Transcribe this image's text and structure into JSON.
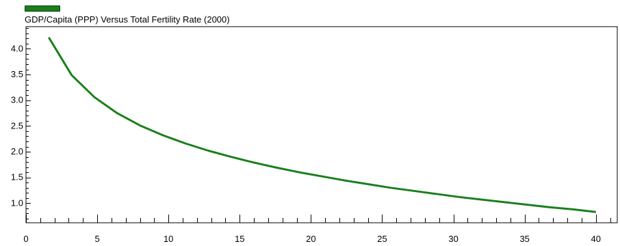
{
  "colors": {
    "series": "#1b7f1b",
    "axis": "#000000",
    "background": "#ffffff"
  },
  "chart_data": {
    "type": "line",
    "title": "GDP/Capita (PPP) Versus Total Fertility Rate (2000)",
    "xlabel": "",
    "ylabel": "",
    "xlim": [
      0,
      41.5
    ],
    "ylim": [
      0.62,
      4.43
    ],
    "grid": false,
    "legend_position": "top-left",
    "x_ticks": [
      0,
      5,
      10,
      15,
      20,
      25,
      30,
      35,
      40
    ],
    "x_tick_labels": [
      "0",
      "5",
      "10",
      "15",
      "20",
      "25",
      "30",
      "35",
      "40"
    ],
    "y_ticks": [
      1.0,
      1.5,
      2.0,
      2.5,
      3.0,
      3.5,
      4.0
    ],
    "y_tick_labels": [
      "1.0",
      "1.5",
      "2.0",
      "2.5",
      "3.0",
      "3.5",
      "4.0"
    ],
    "series": [
      {
        "x": [
          1.6,
          3.2,
          4.8,
          6.4,
          8.0,
          9.6,
          11.2,
          12.8,
          14.4,
          16.0,
          17.6,
          19.2,
          20.8,
          22.4,
          24.0,
          25.6,
          27.2,
          28.8,
          30.4,
          32.0,
          33.6,
          35.2,
          36.8,
          38.4,
          40.0
        ],
        "y": [
          4.22,
          3.49,
          3.06,
          2.75,
          2.51,
          2.32,
          2.16,
          2.02,
          1.9,
          1.79,
          1.69,
          1.6,
          1.52,
          1.44,
          1.37,
          1.3,
          1.24,
          1.18,
          1.12,
          1.07,
          1.02,
          0.97,
          0.92,
          0.88,
          0.83
        ]
      }
    ]
  }
}
